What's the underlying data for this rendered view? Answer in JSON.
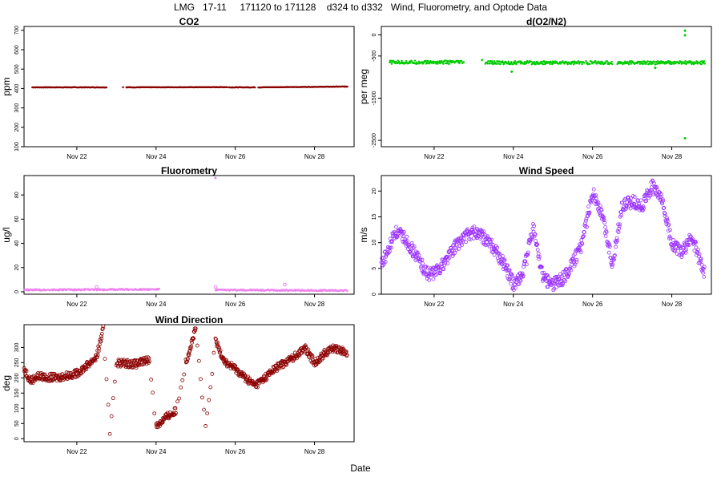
{
  "page_title": "LMG   17-11     171120 to 171128    d324 to d332   Wind, Fluorometry, and Optode Data",
  "x_title": "Date",
  "x_tick_labels": [
    "Nov 22",
    "Nov 24",
    "Nov 26",
    "Nov 28"
  ],
  "chart_data": [
    {
      "type": "scatter",
      "title": "CO2",
      "xlabel": "",
      "ylabel": "ppm",
      "x_range_days": [
        "2017-11-20",
        "2017-11-28"
      ],
      "xlim": [
        "2017-11-20T16:00",
        "2017-11-29T00:00"
      ],
      "ylim": [
        100,
        720
      ],
      "yticks": [
        100,
        200,
        300,
        400,
        500,
        600,
        700
      ],
      "color": "#8b0000",
      "series": [
        {
          "segments": [
            {
              "x": [
                "2017-11-20T21:00",
                "2017-11-22T18:00"
              ],
              "y": [
                406,
                406
              ]
            },
            {
              "x": [
                "2017-11-23T04:00",
                "2017-11-23T04:00"
              ],
              "y": [
                407,
                407
              ]
            },
            {
              "x": [
                "2017-11-23T06:00",
                "2017-11-25T19:00"
              ],
              "y": [
                406,
                407
              ]
            },
            {
              "x": [
                "2017-11-25T20:00",
                "2017-11-26T12:00"
              ],
              "y": [
                406,
                406
              ]
            },
            {
              "x": [
                "2017-11-26T14:00",
                "2017-11-28T20:00"
              ],
              "y": [
                406,
                410
              ]
            }
          ]
        }
      ]
    },
    {
      "type": "scatter",
      "title": "d(O2/N2)",
      "xlabel": "",
      "ylabel": "per meg",
      "xlim": [
        "2017-11-20T16:00",
        "2017-11-29T00:00"
      ],
      "ylim": [
        -2650,
        200
      ],
      "yticks": [
        0,
        -500,
        -1500,
        -2500
      ],
      "color": "#00cc00",
      "series": [
        {
          "segments": [
            {
              "x": [
                "2017-11-20T21:00",
                "2017-11-22T18:00"
              ],
              "y": [
                -650,
                -650
              ]
            },
            {
              "x": [
                "2017-11-23T05:00",
                "2017-11-23T05:00"
              ],
              "y": [
                -620,
                -620
              ]
            },
            {
              "x": [
                "2017-11-23T07:00",
                "2017-11-25T19:00"
              ],
              "y": [
                -660,
                -660
              ]
            },
            {
              "x": [
                "2017-11-25T20:00",
                "2017-11-26T12:00"
              ],
              "y": [
                -660,
                -660
              ]
            },
            {
              "x": [
                "2017-11-26T15:00",
                "2017-11-28T20:00"
              ],
              "y": [
                -660,
                -660
              ]
            }
          ],
          "outliers": [
            {
              "x": "2017-11-28T08:00",
              "y": 100
            },
            {
              "x": "2017-11-28T08:00",
              "y": -10
            },
            {
              "x": "2017-11-28T08:00",
              "y": -2450
            },
            {
              "x": "2017-11-23T23:00",
              "y": -870
            },
            {
              "x": "2017-11-27T14:00",
              "y": -780
            }
          ]
        }
      ]
    },
    {
      "type": "scatter",
      "title": "Fluorometry",
      "xlabel": "",
      "ylabel": "ug/l",
      "xlim": [
        "2017-11-20T16:00",
        "2017-11-29T00:00"
      ],
      "ylim": [
        -2,
        96
      ],
      "yticks": [
        0,
        20,
        40,
        60,
        80
      ],
      "color": "#ee82ee",
      "series": [
        {
          "segments": [
            {
              "x": [
                "2017-11-20T16:00",
                "2017-11-24T02:00"
              ],
              "y": [
                1.5,
                2
              ]
            },
            {
              "x": [
                "2017-11-25T12:00",
                "2017-11-28T20:00"
              ],
              "y": [
                1.5,
                1
              ]
            }
          ],
          "bumps": [
            {
              "x": "2017-11-22T12:00",
              "y": 4
            },
            {
              "x": "2017-11-25T12:00",
              "y": 4
            },
            {
              "x": "2017-11-27T06:00",
              "y": 6
            }
          ],
          "outliers": [
            {
              "x": "2017-11-25T12:00",
              "y": 94
            }
          ]
        }
      ]
    },
    {
      "type": "scatter",
      "title": "Wind Speed",
      "xlabel": "",
      "ylabel": "m/s",
      "xlim": [
        "2017-11-20T16:00",
        "2017-11-29T00:00"
      ],
      "ylim": [
        0,
        23
      ],
      "yticks": [
        0,
        5,
        10,
        15,
        20
      ],
      "color": "#9b30ff",
      "series": [
        {
          "x": [
            "2017-11-20T16:00",
            "2017-11-20T20:00",
            "2017-11-21T00:00",
            "2017-11-21T06:00",
            "2017-11-21T12:00",
            "2017-11-21T20:00",
            "2017-11-22T00:00",
            "2017-11-22T06:00",
            "2017-11-22T12:00",
            "2017-11-22T18:00",
            "2017-11-23T00:00",
            "2017-11-23T06:00",
            "2017-11-23T12:00",
            "2017-11-23T18:00",
            "2017-11-24T00:00",
            "2017-11-24T06:00",
            "2017-11-24T12:00",
            "2017-11-24T18:00",
            "2017-11-25T00:00",
            "2017-11-25T06:00",
            "2017-11-25T12:00",
            "2017-11-25T18:00",
            "2017-11-26T00:00",
            "2017-11-26T06:00",
            "2017-11-26T12:00",
            "2017-11-26T18:00",
            "2017-11-27T00:00",
            "2017-11-27T06:00",
            "2017-11-27T12:00",
            "2017-11-27T18:00",
            "2017-11-28T00:00",
            "2017-11-28T06:00",
            "2017-11-28T12:00",
            "2017-11-28T20:00"
          ],
          "y": [
            6,
            8,
            12,
            11,
            8,
            4,
            4,
            6,
            9,
            11,
            12,
            11,
            9,
            6,
            2,
            4,
            13,
            3,
            2,
            3,
            6,
            10,
            20,
            15,
            6,
            17,
            18,
            17,
            21,
            18,
            10,
            8,
            11,
            4
          ]
        }
      ]
    },
    {
      "type": "scatter",
      "title": "Wind Direction",
      "xlabel": "",
      "ylabel": "deg",
      "xlim": [
        "2017-11-20T16:00",
        "2017-11-29T00:00"
      ],
      "ylim": [
        -10,
        375
      ],
      "yticks": [
        0,
        50,
        100,
        150,
        200,
        250,
        300
      ],
      "color": "#8b0000",
      "series": [
        {
          "x": [
            "2017-11-20T16:00",
            "2017-11-20T20:00",
            "2017-11-21T00:00",
            "2017-11-21T12:00",
            "2017-11-22T00:00",
            "2017-11-22T06:00",
            "2017-11-22T12:00",
            "2017-11-22T16:00",
            "2017-11-22T20:00",
            "2017-11-23T00:00",
            "2017-11-23T12:00",
            "2017-11-23T20:00",
            "2017-11-24T00:00",
            "2017-11-24T06:00",
            "2017-11-24T12:00",
            "2017-11-24T18:00",
            "2017-11-25T00:00",
            "2017-11-25T06:00",
            "2017-11-25T12:00",
            "2017-11-25T18:00",
            "2017-11-26T00:00",
            "2017-11-26T06:00",
            "2017-11-26T12:00",
            "2017-11-26T18:00",
            "2017-11-27T00:00",
            "2017-11-27T06:00",
            "2017-11-27T12:00",
            "2017-11-27T18:00",
            "2017-11-28T00:00",
            "2017-11-28T06:00",
            "2017-11-28T12:00",
            "2017-11-28T20:00"
          ],
          "y": [
            230,
            190,
            205,
            200,
            215,
            240,
            270,
            360,
            20,
            250,
            245,
            260,
            40,
            70,
            90,
            250,
            360,
            30,
            320,
            250,
            230,
            200,
            175,
            200,
            230,
            250,
            270,
            300,
            250,
            280,
            300,
            280
          ]
        }
      ]
    }
  ]
}
